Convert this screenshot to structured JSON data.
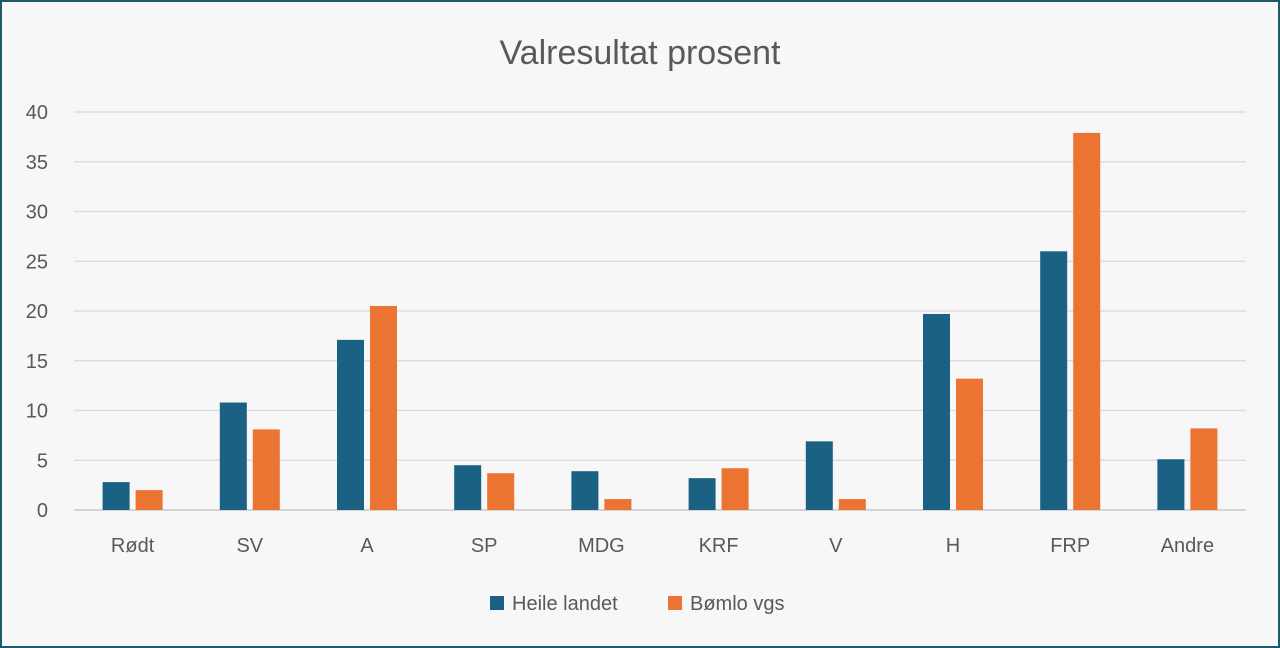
{
  "chart_data": {
    "type": "bar",
    "title": "Valresultat prosent",
    "xlabel": "",
    "ylabel": "",
    "categories": [
      "Rødt",
      "SV",
      "A",
      "SP",
      "MDG",
      "KRF",
      "V",
      "H",
      "FRP",
      "Andre"
    ],
    "series": [
      {
        "name": "Heile landet",
        "color": "#1b6184",
        "values": [
          2.8,
          10.8,
          17.1,
          4.5,
          3.9,
          3.2,
          6.9,
          19.7,
          26.0,
          5.1
        ]
      },
      {
        "name": "Bømlo vgs",
        "color": "#ec7433",
        "values": [
          2.0,
          8.1,
          20.5,
          3.7,
          1.1,
          4.2,
          1.1,
          13.2,
          37.9,
          8.2
        ]
      }
    ],
    "ylim": [
      0,
      40
    ],
    "yticks": [
      0,
      5,
      10,
      15,
      20,
      25,
      30,
      35,
      40
    ],
    "grid": true,
    "legend_position": "bottom"
  }
}
